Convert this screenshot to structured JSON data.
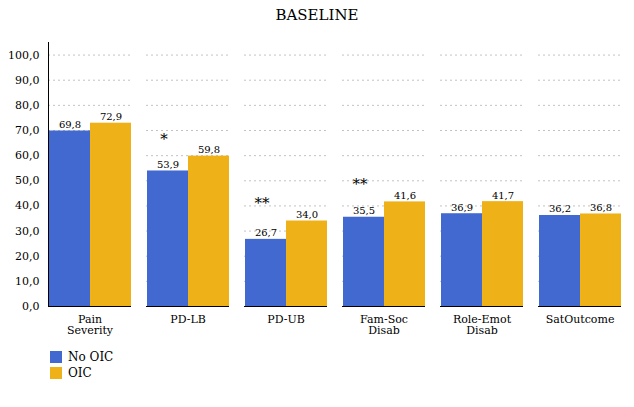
{
  "chart_data": {
    "type": "bar",
    "title": "BASELINE",
    "categories": [
      "Pain\nSeverity",
      "PD-LB",
      "PD-UB",
      "Fam-Soc\nDisab",
      "Role-Emot\nDisab",
      "SatOutcome"
    ],
    "series": [
      {
        "name": "No OIC",
        "values": [
          69.8,
          53.9,
          26.7,
          35.5,
          36.9,
          36.2
        ],
        "value_labels": [
          "69,8",
          "53,9",
          "26,7",
          "35,5",
          "36,9",
          "36,2"
        ]
      },
      {
        "name": "OIC",
        "values": [
          72.9,
          59.8,
          34.0,
          41.6,
          41.7,
          36.8
        ],
        "value_labels": [
          "72,9",
          "59,8",
          "34,0",
          "41,6",
          "41,7",
          "36,8"
        ]
      }
    ],
    "ylim": [
      0,
      105
    ],
    "yticks": [
      {
        "value": 0,
        "label": "0,0"
      },
      {
        "value": 10,
        "label": "10,0"
      },
      {
        "value": 20,
        "label": "20,0"
      },
      {
        "value": 30,
        "label": "30,0"
      },
      {
        "value": 40,
        "label": "40,0"
      },
      {
        "value": 50,
        "label": "50,0"
      },
      {
        "value": 60,
        "label": "60,0"
      },
      {
        "value": 70,
        "label": "70,0"
      },
      {
        "value": 80,
        "label": "80,0"
      },
      {
        "value": 90,
        "label": "90,0"
      },
      {
        "value": 100,
        "label": "100,0"
      }
    ],
    "annotations": [
      {
        "text": "*",
        "category": "PD-LB",
        "series": "No OIC",
        "y": 64.8
      },
      {
        "text": "**",
        "category": "PD-UB",
        "series": "No OIC",
        "y": 39.0
      },
      {
        "text": "**",
        "category": "Fam-Soc\nDisab",
        "series": "No OIC",
        "y": 46.6
      }
    ],
    "grid": true,
    "data_labels": true,
    "legend": "lower left"
  }
}
